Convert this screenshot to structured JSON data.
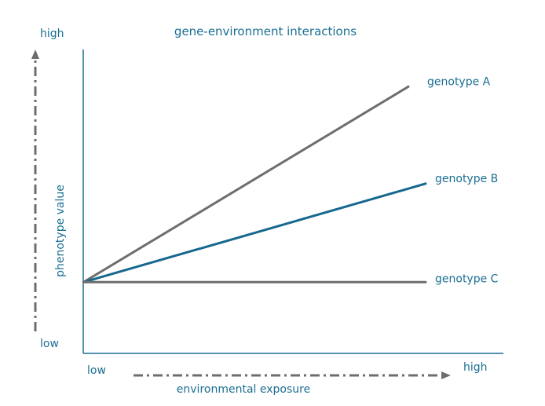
{
  "chart_data": {
    "type": "line",
    "title": "gene-environment interactions",
    "xlabel": "environmental exposure",
    "ylabel": "phenotype value",
    "x_ticks": {
      "low": "low",
      "high": "high"
    },
    "y_ticks": {
      "low": "low",
      "high": "high"
    },
    "xlim": [
      0,
      1
    ],
    "ylim": [
      0,
      1
    ],
    "grid": false,
    "legend": "none",
    "series": [
      {
        "name": "genotype A",
        "x": [
          0.06,
          1.0
        ],
        "y": [
          0.235,
          0.88
        ],
        "color": "#6d6d6d"
      },
      {
        "name": "genotype B",
        "x": [
          0.06,
          1.05
        ],
        "y": [
          0.235,
          0.56
        ],
        "color": "#17688e"
      },
      {
        "name": "genotype C",
        "x": [
          0.06,
          1.05
        ],
        "y": [
          0.235,
          0.235
        ],
        "color": "#6d6d6d"
      }
    ]
  },
  "colors": {
    "text": "#1b6f93",
    "axis": "#1b6f93",
    "arrow": "#6d6d6d"
  }
}
